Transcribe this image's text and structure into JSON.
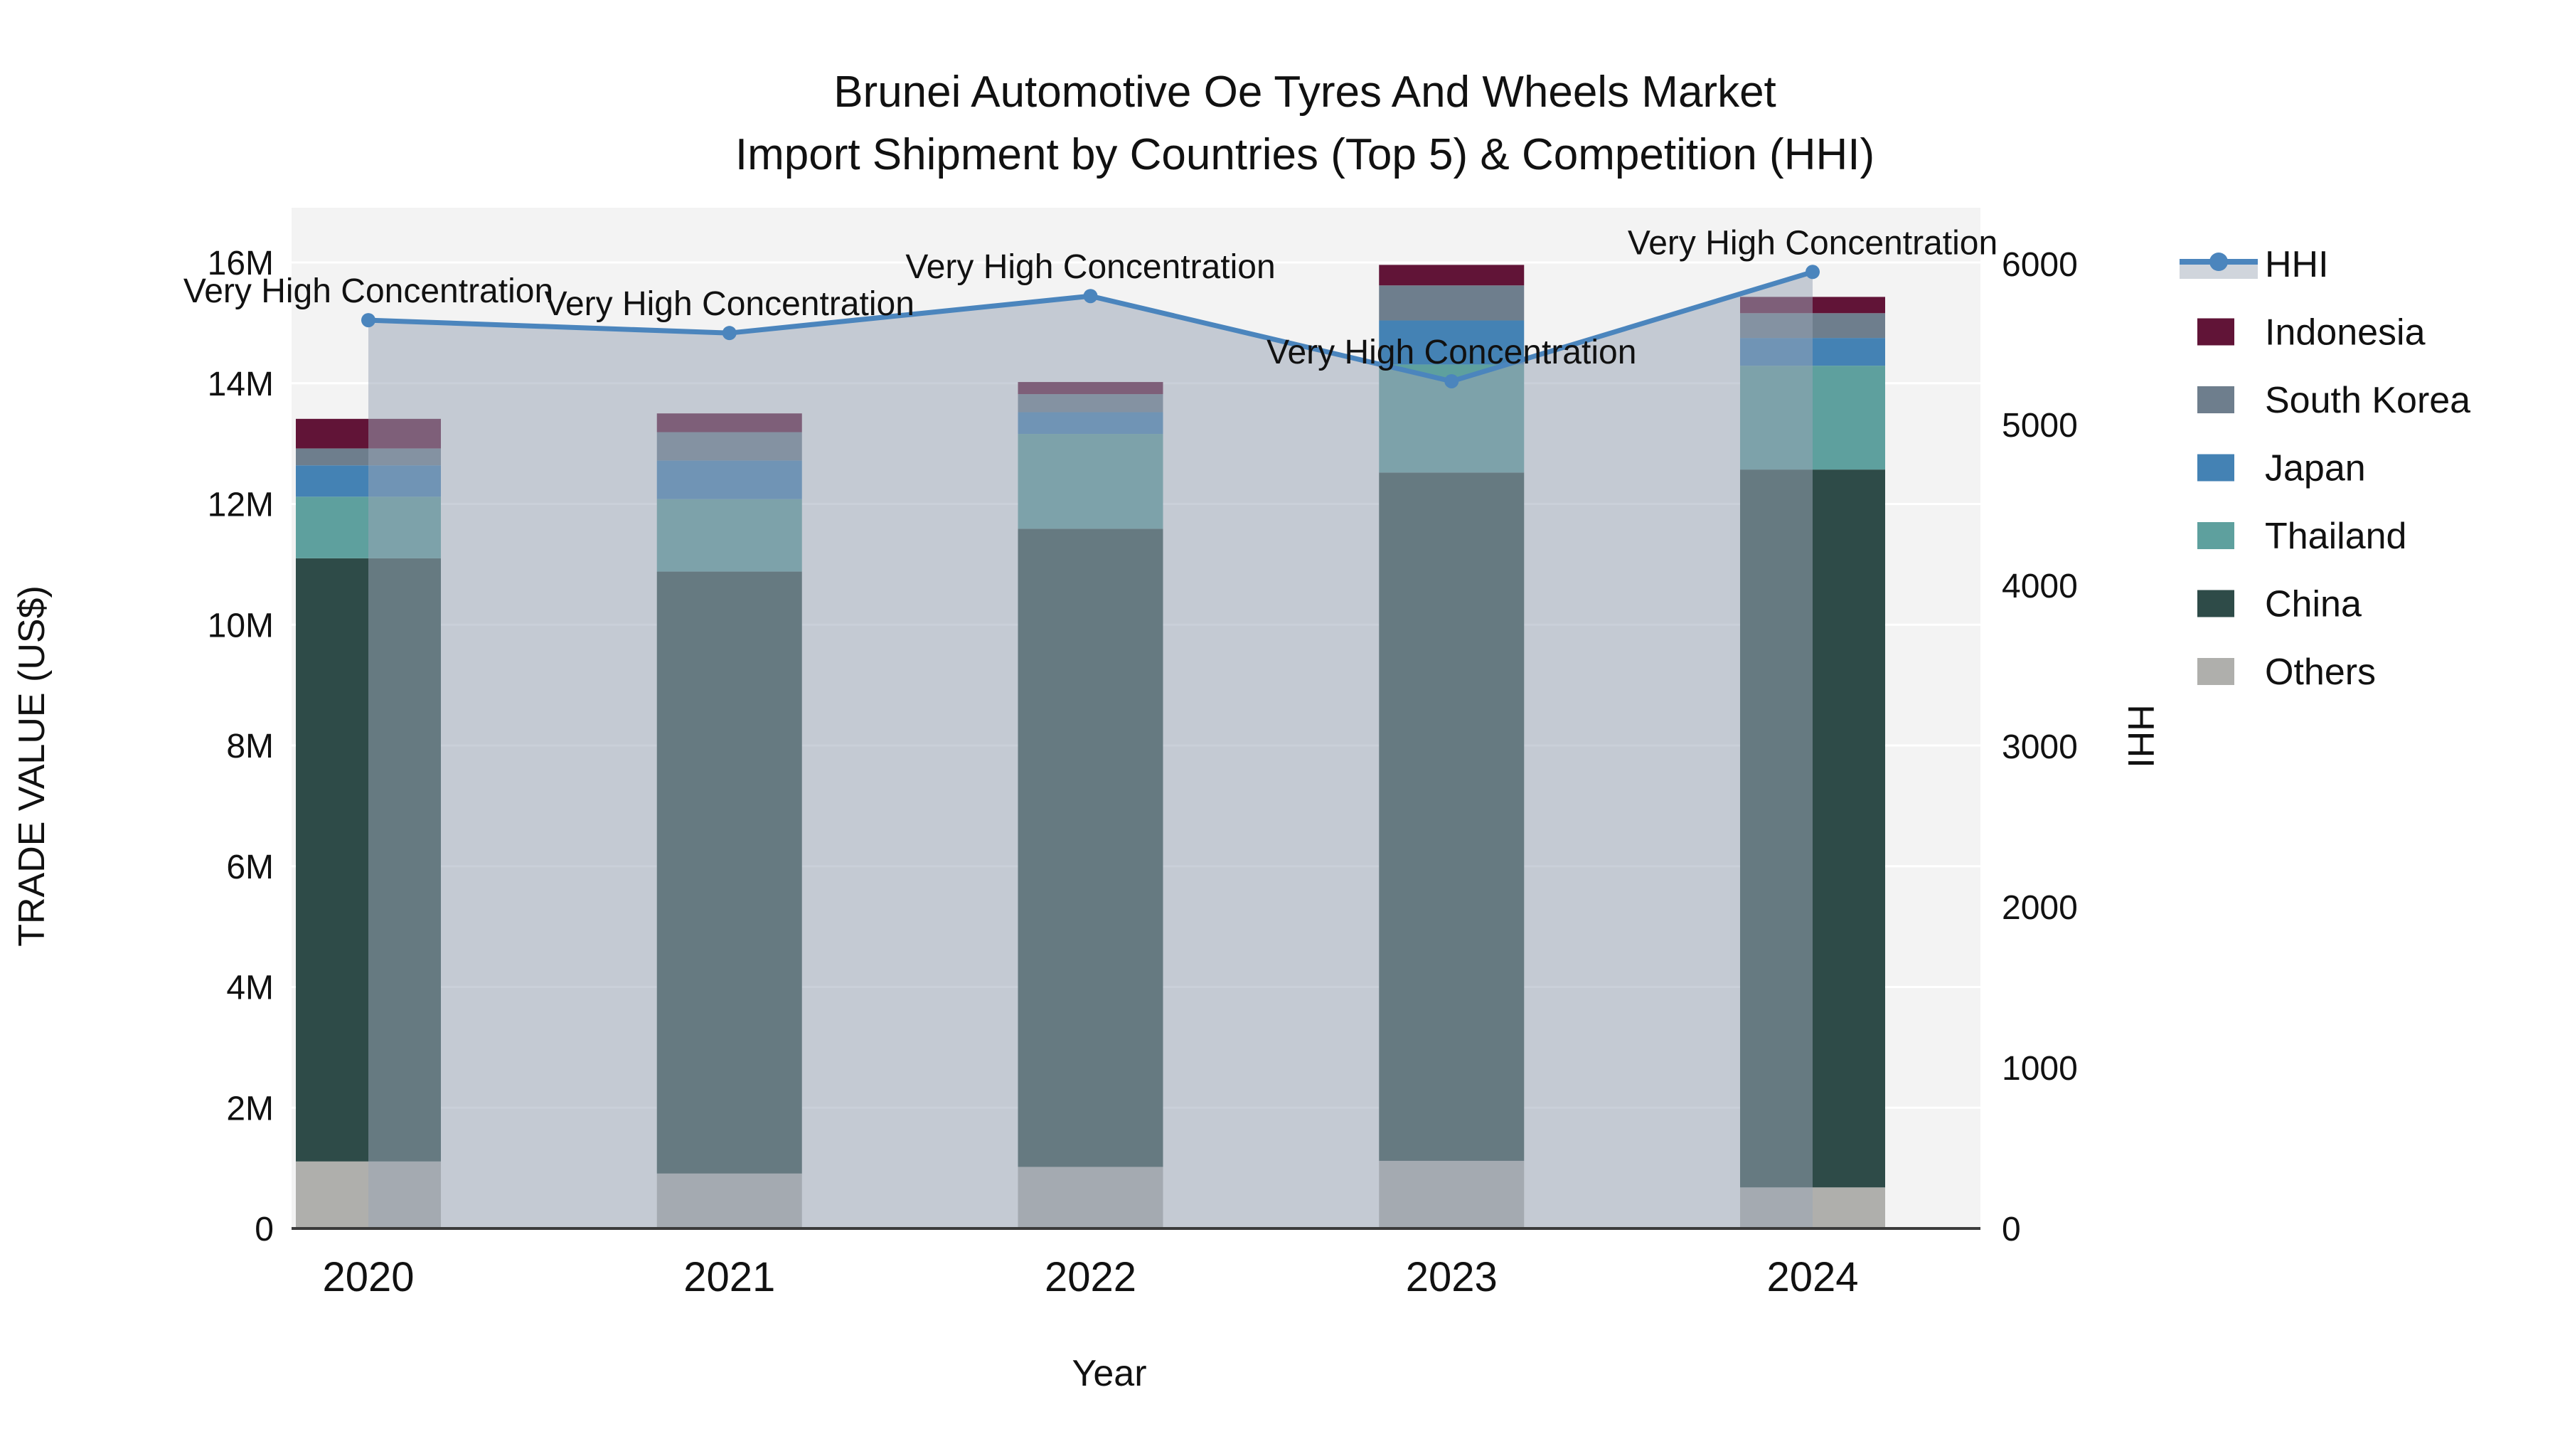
{
  "title": {
    "line1": "Brunei Automotive Oe Tyres And Wheels Market",
    "line2": "Import Shipment by Countries (Top 5) & Competition (HHI)"
  },
  "axes": {
    "left": {
      "title": "TRADE VALUE (US$)",
      "tick_labels": [
        "0",
        "2M",
        "4M",
        "6M",
        "8M",
        "10M",
        "12M",
        "14M",
        "16M"
      ],
      "tick_values_millions": [
        0,
        2,
        4,
        6,
        8,
        10,
        12,
        14,
        16
      ]
    },
    "right": {
      "title": "HHI",
      "tick_labels": [
        "0",
        "1000",
        "2000",
        "3000",
        "4000",
        "5000",
        "6000"
      ],
      "tick_values": [
        0,
        1000,
        2000,
        3000,
        4000,
        5000,
        6000
      ]
    },
    "x": {
      "title": "Year",
      "tick_labels": [
        "2020",
        "2021",
        "2022",
        "2023",
        "2024"
      ]
    }
  },
  "chart_data": {
    "type": "combo-stacked-bar-line",
    "categories": [
      "2020",
      "2021",
      "2022",
      "2023",
      "2024"
    ],
    "bar_unit": "US$ millions",
    "series": [
      {
        "name": "Others",
        "type": "bar",
        "color": "#AFAFAC",
        "values": [
          1.11,
          0.91,
          1.02,
          1.12,
          0.68
        ]
      },
      {
        "name": "China",
        "type": "bar",
        "color": "#2E4B48",
        "values": [
          9.99,
          9.97,
          10.57,
          11.4,
          11.89
        ]
      },
      {
        "name": "Thailand",
        "type": "bar",
        "color": "#5EA09E",
        "values": [
          1.02,
          1.2,
          1.57,
          1.79,
          1.72
        ]
      },
      {
        "name": "Japan",
        "type": "bar",
        "color": "#4482B4",
        "values": [
          0.52,
          0.64,
          0.36,
          0.73,
          0.46
        ]
      },
      {
        "name": "South Korea",
        "type": "bar",
        "color": "#6E7E8D",
        "values": [
          0.28,
          0.47,
          0.3,
          0.58,
          0.41
        ]
      },
      {
        "name": "Indonesia",
        "type": "bar",
        "color": "#611437",
        "values": [
          0.49,
          0.31,
          0.2,
          0.34,
          0.27
        ]
      }
    ],
    "bar_totals_millions": [
      13.41,
      13.5,
      14.02,
      15.96,
      15.43
    ],
    "line": {
      "name": "HHI",
      "axis": "right",
      "color": "#4B85BD",
      "area_fill": "rgba(154,165,182,0.52)",
      "legend_band_color": "#D0D5DC",
      "values": [
        5650,
        5570,
        5800,
        5270,
        5950
      ]
    },
    "annotations": [
      {
        "x": "2020",
        "text": "Very High Concentration"
      },
      {
        "x": "2021",
        "text": "Very High Concentration"
      },
      {
        "x": "2022",
        "text": "Very High Concentration"
      },
      {
        "x": "2023",
        "text": "Very High Concentration"
      },
      {
        "x": "2024",
        "text": "Very High Concentration"
      }
    ],
    "y_left_range_millions": [
      0,
      16.9
    ],
    "y_right_range": [
      0,
      6000
    ],
    "gridlines": "white, every 2M",
    "legend_position": "right",
    "legend_order": [
      "HHI",
      "Indonesia",
      "South Korea",
      "Japan",
      "Thailand",
      "China",
      "Others"
    ]
  },
  "legend": {
    "items": [
      {
        "label": "HHI"
      },
      {
        "label": "Indonesia"
      },
      {
        "label": "South Korea"
      },
      {
        "label": "Japan"
      },
      {
        "label": "Thailand"
      },
      {
        "label": "China"
      },
      {
        "label": "Others"
      }
    ]
  }
}
